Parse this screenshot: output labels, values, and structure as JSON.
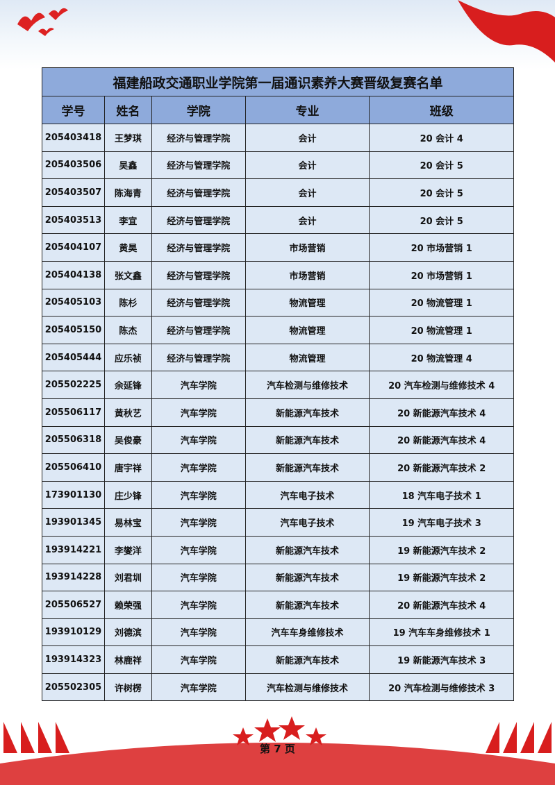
{
  "title": "福建船政交通职业学院第一届通识素养大赛晋级复赛名单",
  "headers": [
    "学号",
    "姓名",
    "学院",
    "专业",
    "班级"
  ],
  "rows": [
    [
      "205403418",
      "王梦琪",
      "经济与管理学院",
      "会计",
      "20 会计 4"
    ],
    [
      "205403506",
      "吴鑫",
      "经济与管理学院",
      "会计",
      "20 会计 5"
    ],
    [
      "205403507",
      "陈海青",
      "经济与管理学院",
      "会计",
      "20 会计 5"
    ],
    [
      "205403513",
      "李宜",
      "经济与管理学院",
      "会计",
      "20 会计 5"
    ],
    [
      "205404107",
      "黄昊",
      "经济与管理学院",
      "市场营销",
      "20 市场营销 1"
    ],
    [
      "205404138",
      "张文鑫",
      "经济与管理学院",
      "市场营销",
      "20 市场营销 1"
    ],
    [
      "205405103",
      "陈杉",
      "经济与管理学院",
      "物流管理",
      "20 物流管理 1"
    ],
    [
      "205405150",
      "陈杰",
      "经济与管理学院",
      "物流管理",
      "20 物流管理 1"
    ],
    [
      "205405444",
      "应乐祯",
      "经济与管理学院",
      "物流管理",
      "20 物流管理 4"
    ],
    [
      "205502225",
      "余延锋",
      "汽车学院",
      "汽车检测与维修技术",
      "20 汽车检测与维修技术 4"
    ],
    [
      "205506117",
      "黄秋艺",
      "汽车学院",
      "新能源汽车技术",
      "20 新能源汽车技术 4"
    ],
    [
      "205506318",
      "吴俊豪",
      "汽车学院",
      "新能源汽车技术",
      "20 新能源汽车技术 4"
    ],
    [
      "205506410",
      "唐宇祥",
      "汽车学院",
      "新能源汽车技术",
      "20 新能源汽车技术 2"
    ],
    [
      "173901130",
      "庄少锋",
      "汽车学院",
      "汽车电子技术",
      "18 汽车电子技术 1"
    ],
    [
      "193901345",
      "易林宝",
      "汽车学院",
      "汽车电子技术",
      "19 汽车电子技术 3"
    ],
    [
      "193914221",
      "李燮洋",
      "汽车学院",
      "新能源汽车技术",
      "19 新能源汽车技术 2"
    ],
    [
      "193914228",
      "刘君圳",
      "汽车学院",
      "新能源汽车技术",
      "19 新能源汽车技术 2"
    ],
    [
      "205506527",
      "赖荣强",
      "汽车学院",
      "新能源汽车技术",
      "20 新能源汽车技术 4"
    ],
    [
      "193910129",
      "刘德滨",
      "汽车学院",
      "汽车车身维修技术",
      "19 汽车车身维修技术 1"
    ],
    [
      "193914323",
      "林鹿祥",
      "汽车学院",
      "新能源汽车技术",
      "19 新能源汽车技术 3"
    ],
    [
      "205502305",
      "许树楞",
      "汽车学院",
      "汽车检测与维修技术",
      "20 汽车检测与维修技术 3"
    ]
  ],
  "page_label": "第 7 页",
  "colors": {
    "header_bg": "#8eaadb",
    "row_bg": "#dde8f5",
    "accent_red": "#d81e1e"
  }
}
